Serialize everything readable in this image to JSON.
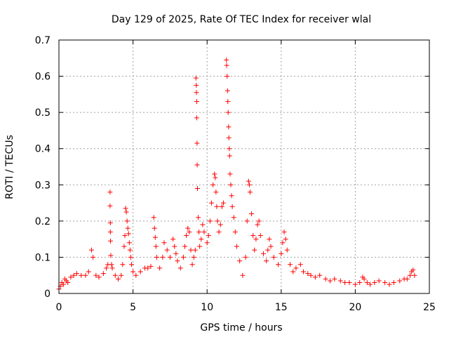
{
  "chart_data": {
    "type": "scatter",
    "title": "Day 129 of 2025, Rate Of TEC Index for receiver wlal",
    "xlabel": "GPS time / hours",
    "ylabel": "ROTI / TECUs",
    "xlim": [
      0,
      25
    ],
    "ylim": [
      0,
      0.7
    ],
    "xticks": [
      "0",
      "5",
      "10",
      "15",
      "20",
      "25"
    ],
    "yticks": [
      "0",
      "0.1",
      "0.2",
      "0.3",
      "0.4",
      "0.5",
      "0.6",
      "0.7"
    ],
    "grid": true,
    "marker": "+",
    "marker_color": "#ff0000",
    "series": [
      {
        "points": [
          [
            0.0,
            0.012
          ],
          [
            0.1,
            0.02
          ],
          [
            0.2,
            0.03
          ],
          [
            0.3,
            0.025
          ],
          [
            0.4,
            0.04
          ],
          [
            0.5,
            0.035
          ],
          [
            0.6,
            0.03
          ],
          [
            0.8,
            0.045
          ],
          [
            1.0,
            0.05
          ],
          [
            1.2,
            0.055
          ],
          [
            1.5,
            0.05
          ],
          [
            1.8,
            0.05
          ],
          [
            2.0,
            0.06
          ],
          [
            2.2,
            0.12
          ],
          [
            2.3,
            0.1
          ],
          [
            2.5,
            0.05
          ],
          [
            2.7,
            0.045
          ],
          [
            3.0,
            0.055
          ],
          [
            3.2,
            0.07
          ],
          [
            3.3,
            0.08
          ],
          [
            3.45,
            0.28
          ],
          [
            3.45,
            0.242
          ],
          [
            3.47,
            0.195
          ],
          [
            3.47,
            0.17
          ],
          [
            3.48,
            0.145
          ],
          [
            3.5,
            0.105
          ],
          [
            3.55,
            0.08
          ],
          [
            3.6,
            0.07
          ],
          [
            3.8,
            0.05
          ],
          [
            4.0,
            0.04
          ],
          [
            4.2,
            0.05
          ],
          [
            4.3,
            0.08
          ],
          [
            4.4,
            0.13
          ],
          [
            4.45,
            0.16
          ],
          [
            4.5,
            0.235
          ],
          [
            4.55,
            0.225
          ],
          [
            4.6,
            0.2
          ],
          [
            4.65,
            0.18
          ],
          [
            4.7,
            0.165
          ],
          [
            4.75,
            0.14
          ],
          [
            4.8,
            0.12
          ],
          [
            4.85,
            0.1
          ],
          [
            4.9,
            0.08
          ],
          [
            5.0,
            0.06
          ],
          [
            5.2,
            0.05
          ],
          [
            5.5,
            0.06
          ],
          [
            5.8,
            0.07
          ],
          [
            6.0,
            0.07
          ],
          [
            6.2,
            0.075
          ],
          [
            6.4,
            0.21
          ],
          [
            6.45,
            0.18
          ],
          [
            6.5,
            0.155
          ],
          [
            6.55,
            0.13
          ],
          [
            6.6,
            0.1
          ],
          [
            6.8,
            0.07
          ],
          [
            7.0,
            0.1
          ],
          [
            7.1,
            0.14
          ],
          [
            7.3,
            0.12
          ],
          [
            7.5,
            0.1
          ],
          [
            7.7,
            0.15
          ],
          [
            7.8,
            0.13
          ],
          [
            7.9,
            0.11
          ],
          [
            8.0,
            0.09
          ],
          [
            8.2,
            0.07
          ],
          [
            8.4,
            0.1
          ],
          [
            8.5,
            0.13
          ],
          [
            8.6,
            0.16
          ],
          [
            8.7,
            0.18
          ],
          [
            8.8,
            0.17
          ],
          [
            8.9,
            0.12
          ],
          [
            9.0,
            0.08
          ],
          [
            9.1,
            0.1
          ],
          [
            9.2,
            0.12
          ],
          [
            9.25,
            0.595
          ],
          [
            9.27,
            0.575
          ],
          [
            9.28,
            0.555
          ],
          [
            9.3,
            0.53
          ],
          [
            9.3,
            0.485
          ],
          [
            9.32,
            0.415
          ],
          [
            9.33,
            0.355
          ],
          [
            9.35,
            0.29
          ],
          [
            9.4,
            0.21
          ],
          [
            9.45,
            0.17
          ],
          [
            9.5,
            0.13
          ],
          [
            9.6,
            0.15
          ],
          [
            9.7,
            0.19
          ],
          [
            9.8,
            0.17
          ],
          [
            10.0,
            0.14
          ],
          [
            10.1,
            0.16
          ],
          [
            10.2,
            0.2
          ],
          [
            10.3,
            0.25
          ],
          [
            10.4,
            0.3
          ],
          [
            10.5,
            0.33
          ],
          [
            10.55,
            0.32
          ],
          [
            10.6,
            0.28
          ],
          [
            10.65,
            0.24
          ],
          [
            10.7,
            0.2
          ],
          [
            10.8,
            0.17
          ],
          [
            10.9,
            0.19
          ],
          [
            11.0,
            0.24
          ],
          [
            11.1,
            0.25
          ],
          [
            11.3,
            0.645
          ],
          [
            11.32,
            0.63
          ],
          [
            11.35,
            0.6
          ],
          [
            11.38,
            0.56
          ],
          [
            11.4,
            0.53
          ],
          [
            11.42,
            0.5
          ],
          [
            11.45,
            0.46
          ],
          [
            11.47,
            0.43
          ],
          [
            11.5,
            0.4
          ],
          [
            11.52,
            0.38
          ],
          [
            11.55,
            0.33
          ],
          [
            11.6,
            0.3
          ],
          [
            11.65,
            0.27
          ],
          [
            11.7,
            0.24
          ],
          [
            11.8,
            0.21
          ],
          [
            11.9,
            0.17
          ],
          [
            12.0,
            0.13
          ],
          [
            12.2,
            0.09
          ],
          [
            12.4,
            0.05
          ],
          [
            12.6,
            0.1
          ],
          [
            12.7,
            0.2
          ],
          [
            12.8,
            0.31
          ],
          [
            12.85,
            0.3
          ],
          [
            12.9,
            0.28
          ],
          [
            13.0,
            0.22
          ],
          [
            13.1,
            0.16
          ],
          [
            13.2,
            0.12
          ],
          [
            13.3,
            0.15
          ],
          [
            13.4,
            0.19
          ],
          [
            13.5,
            0.2
          ],
          [
            13.6,
            0.16
          ],
          [
            13.8,
            0.11
          ],
          [
            14.0,
            0.09
          ],
          [
            14.1,
            0.12
          ],
          [
            14.2,
            0.15
          ],
          [
            14.3,
            0.13
          ],
          [
            14.5,
            0.1
          ],
          [
            14.8,
            0.08
          ],
          [
            15.0,
            0.11
          ],
          [
            15.1,
            0.14
          ],
          [
            15.2,
            0.17
          ],
          [
            15.3,
            0.15
          ],
          [
            15.4,
            0.12
          ],
          [
            15.6,
            0.08
          ],
          [
            15.8,
            0.06
          ],
          [
            16.0,
            0.07
          ],
          [
            16.3,
            0.08
          ],
          [
            16.5,
            0.06
          ],
          [
            16.8,
            0.055
          ],
          [
            17.0,
            0.05
          ],
          [
            17.3,
            0.045
          ],
          [
            17.6,
            0.05
          ],
          [
            18.0,
            0.04
          ],
          [
            18.3,
            0.035
          ],
          [
            18.6,
            0.04
          ],
          [
            19.0,
            0.035
          ],
          [
            19.3,
            0.03
          ],
          [
            19.6,
            0.03
          ],
          [
            20.0,
            0.025
          ],
          [
            20.3,
            0.03
          ],
          [
            20.5,
            0.045
          ],
          [
            20.6,
            0.04
          ],
          [
            20.8,
            0.03
          ],
          [
            21.0,
            0.025
          ],
          [
            21.3,
            0.03
          ],
          [
            21.6,
            0.035
          ],
          [
            22.0,
            0.03
          ],
          [
            22.3,
            0.025
          ],
          [
            22.6,
            0.03
          ],
          [
            23.0,
            0.035
          ],
          [
            23.3,
            0.04
          ],
          [
            23.5,
            0.04
          ],
          [
            23.7,
            0.05
          ],
          [
            23.8,
            0.06
          ],
          [
            23.9,
            0.065
          ],
          [
            24.0,
            0.05
          ]
        ]
      }
    ]
  }
}
